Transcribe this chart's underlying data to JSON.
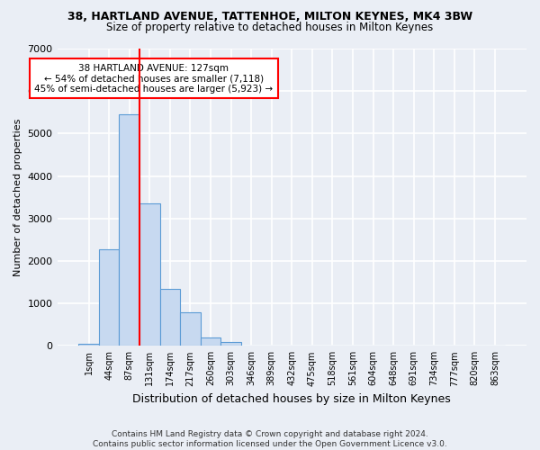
{
  "title1": "38, HARTLAND AVENUE, TATTENHOE, MILTON KEYNES, MK4 3BW",
  "title2": "Size of property relative to detached houses in Milton Keynes",
  "xlabel": "Distribution of detached houses by size in Milton Keynes",
  "ylabel": "Number of detached properties",
  "footer1": "Contains HM Land Registry data © Crown copyright and database right 2024.",
  "footer2": "Contains public sector information licensed under the Open Government Licence v3.0.",
  "bar_labels": [
    "1sqm",
    "44sqm",
    "87sqm",
    "131sqm",
    "174sqm",
    "217sqm",
    "260sqm",
    "303sqm",
    "346sqm",
    "389sqm",
    "432sqm",
    "475sqm",
    "518sqm",
    "561sqm",
    "604sqm",
    "648sqm",
    "691sqm",
    "734sqm",
    "777sqm",
    "820sqm",
    "863sqm"
  ],
  "bar_values": [
    50,
    2280,
    5450,
    3350,
    1350,
    800,
    190,
    100,
    0,
    0,
    0,
    0,
    0,
    0,
    0,
    0,
    0,
    0,
    0,
    0,
    0
  ],
  "bar_color": "#c7d9f0",
  "bar_edge_color": "#5b9bd5",
  "vline_color": "red",
  "vline_x_index": 2.5,
  "annotation_text": "38 HARTLAND AVENUE: 127sqm\n← 54% of detached houses are smaller (7,118)\n45% of semi-detached houses are larger (5,923) →",
  "annotation_box_color": "white",
  "annotation_box_edge": "red",
  "ylim": [
    0,
    7000
  ],
  "yticks": [
    0,
    1000,
    2000,
    3000,
    4000,
    5000,
    6000,
    7000
  ],
  "bg_color": "#eaeef5",
  "plot_bg_color": "#eaeef5",
  "grid_color": "white"
}
